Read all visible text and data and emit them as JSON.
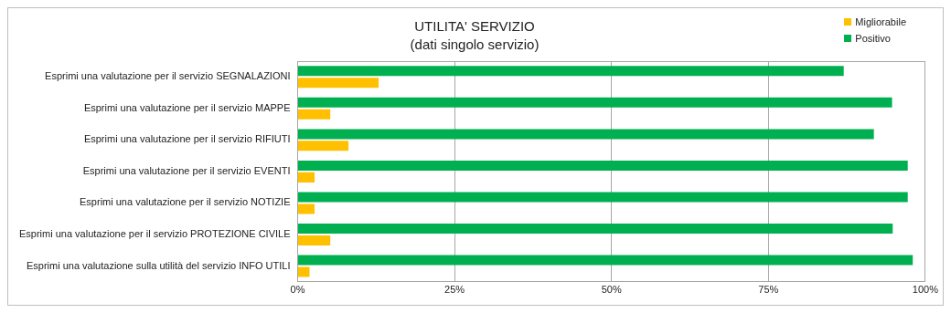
{
  "chart_data": {
    "type": "bar",
    "orientation": "horizontal",
    "title": "UTILITA' SERVIZIO",
    "subtitle": "(dati singolo servizio)",
    "categories": [
      "Esprimi una valutazione per il servizio SEGNALAZIONI",
      "Esprimi una valutazione per il servizio MAPPE",
      "Esprimi una valutazione per il servizio RIFIUTI",
      "Esprimi una valutazione per il servizio EVENTI",
      "Esprimi una valutazione per il servizio NOTIZIE",
      "Esprimi una valutazione per il servizio PROTEZIONE CIVILE",
      "Esprimi una valutazione sulla utilità del servizio INFO UTILI"
    ],
    "series": [
      {
        "name": "Positivo",
        "color": "#00b050",
        "values": [
          87.0,
          94.7,
          91.8,
          97.2,
          97.2,
          94.8,
          98.0
        ]
      },
      {
        "name": "Migliorabile",
        "color": "#ffc000",
        "values": [
          12.9,
          5.2,
          8.1,
          2.7,
          2.7,
          5.2,
          1.9
        ]
      }
    ],
    "xlim": [
      0,
      100
    ],
    "xticks": [
      {
        "value": 0,
        "label": "0%"
      },
      {
        "value": 25,
        "label": "25%"
      },
      {
        "value": 50,
        "label": "50%"
      },
      {
        "value": 75,
        "label": "75%"
      },
      {
        "value": 100,
        "label": "100%"
      }
    ],
    "grid": "x",
    "legend": "top right"
  }
}
